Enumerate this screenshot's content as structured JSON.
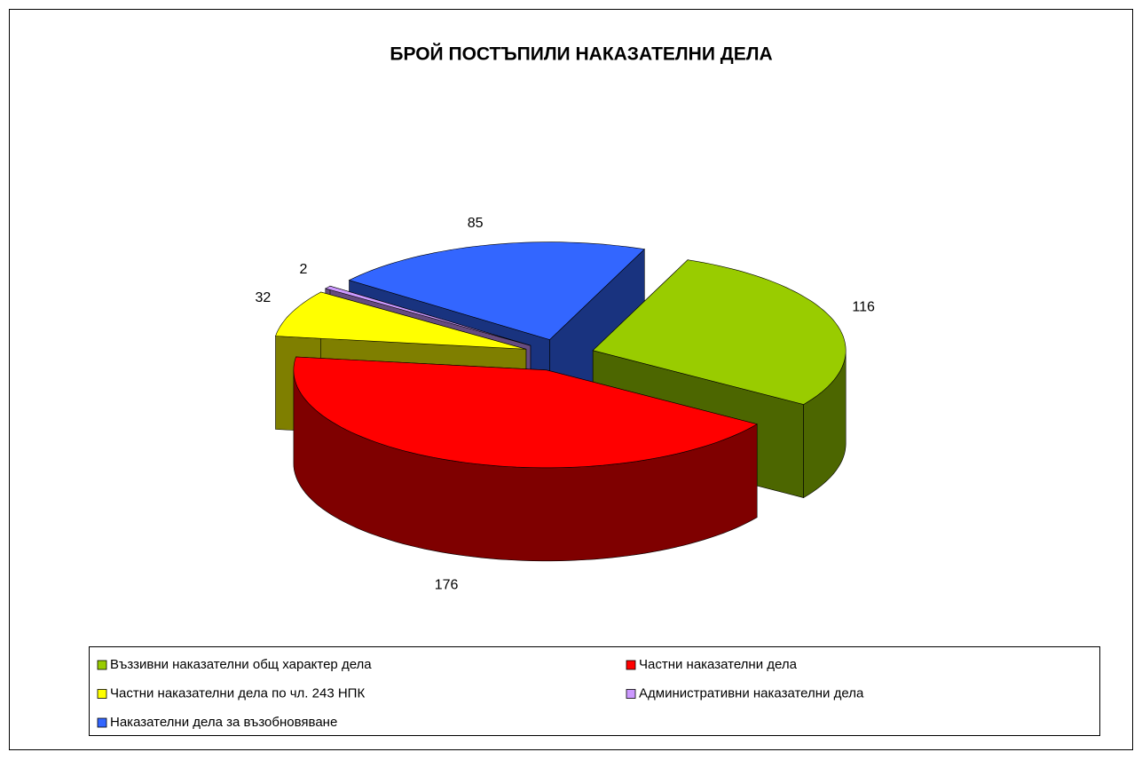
{
  "chart_data": {
    "type": "pie3d",
    "title": "БРОЙ ПОСТЪПИЛИ НАКАЗАТЕЛНИ ДЕЛА",
    "categories": [
      "Въззивни наказателни общ характер дела",
      "Частни наказателни дела",
      "Частни наказателни дела по чл. 243 НПК",
      "Административни наказателни дела",
      "Наказателни дела за възобновяване"
    ],
    "values": [
      116,
      176,
      32,
      2,
      85
    ],
    "colors": [
      "#99cc00",
      "#ff0000",
      "#ffff00",
      "#cc99ff",
      "#3366ff"
    ],
    "legend": "bottom"
  }
}
